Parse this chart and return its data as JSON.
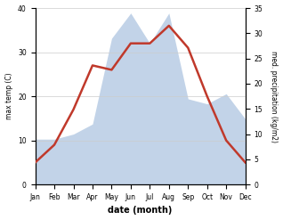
{
  "months": [
    "Jan",
    "Feb",
    "Mar",
    "Apr",
    "May",
    "Jun",
    "Jul",
    "Aug",
    "Sep",
    "Oct",
    "Nov",
    "Dec"
  ],
  "temp": [
    5,
    9,
    17,
    27,
    26,
    32,
    32,
    36,
    31,
    20,
    10,
    5
  ],
  "precip": [
    9,
    9,
    10,
    12,
    29,
    34,
    28,
    34,
    17,
    16,
    18,
    13
  ],
  "temp_color": "#c0392b",
  "precip_color": "#b8cce4",
  "ylabel_left": "max temp (C)",
  "ylabel_right": "med. precipitation (kg/m2)",
  "xlabel": "date (month)",
  "ylim_left": [
    0,
    40
  ],
  "ylim_right": [
    0,
    35
  ],
  "grid_color": "#cccccc"
}
